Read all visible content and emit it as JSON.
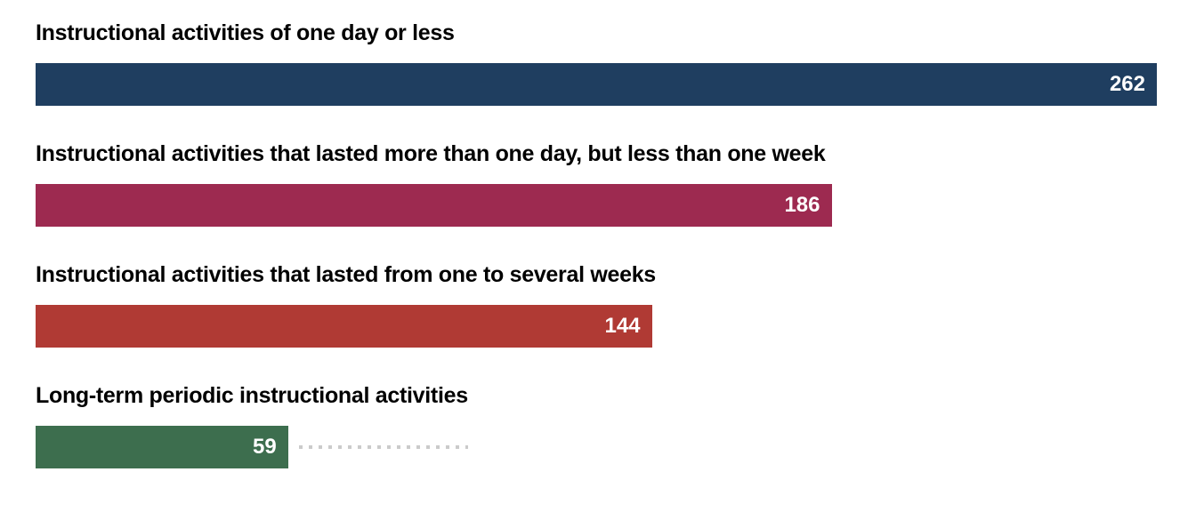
{
  "chart_data": {
    "type": "bar",
    "orientation": "horizontal",
    "title": "",
    "xlabel": "",
    "ylabel": "",
    "grid": false,
    "legend": false,
    "xlim": [
      0,
      262
    ],
    "categories": [
      "Instructional activities of one day or less",
      "Instructional activities that lasted more than one day, but less than one week",
      "Instructional activities that lasted from one to several weeks",
      "Long-term periodic instructional activities"
    ],
    "values": [
      262,
      186,
      144,
      59
    ],
    "colors": [
      "#1f3e60",
      "#9d2a50",
      "#b03a34",
      "#3d6e4e"
    ],
    "value_label_color": "#ffffff",
    "category_label_color": "#000000",
    "annotations": {
      "dotted_leader": {
        "row_index": 3,
        "from_value": 61.5,
        "to_value": 101,
        "color": "#cbcbcb",
        "style": "dotted"
      }
    }
  }
}
